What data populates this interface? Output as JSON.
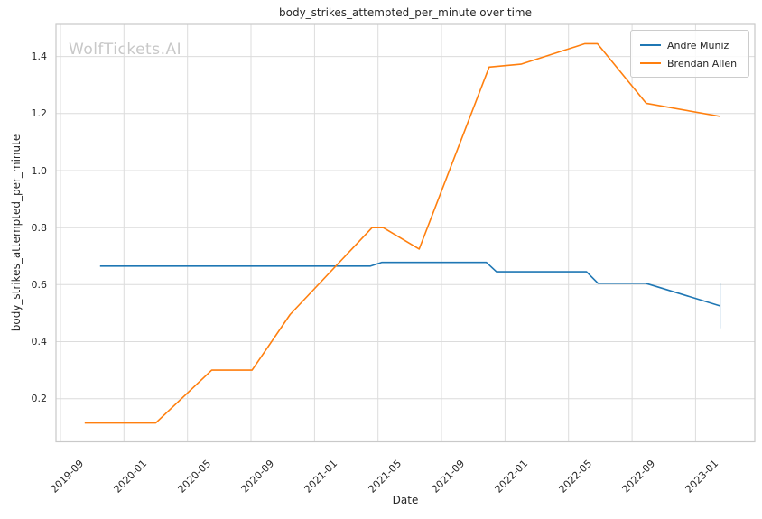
{
  "chart_data": {
    "type": "line",
    "title": "body_strikes_attempted_per_minute over time",
    "xlabel": "Date",
    "ylabel": "body_strikes_attempted_per_minute",
    "watermark": "WolfTickets.AI",
    "grid": true,
    "legend": {
      "position": "upper right",
      "entries": [
        "Andre Muniz",
        "Brendan Allen"
      ]
    },
    "x_tick_labels": [
      "2019-09",
      "2020-01",
      "2020-05",
      "2020-09",
      "2021-01",
      "2021-05",
      "2021-09",
      "2022-01",
      "2022-05",
      "2022-09",
      "2023-01"
    ],
    "y_ticks": [
      {
        "label": "0.2",
        "value": 0.2
      },
      {
        "label": "0.4",
        "value": 0.4
      },
      {
        "label": "0.6",
        "value": 0.6
      },
      {
        "label": "0.8",
        "value": 0.8
      },
      {
        "label": "1.0",
        "value": 1.0
      },
      {
        "label": "1.2",
        "value": 1.2
      },
      {
        "label": "1.4",
        "value": 1.4
      }
    ],
    "ylim": [
      0.05,
      1.51
    ],
    "xlim": [
      "2019-08-23",
      "2023-04-22"
    ],
    "series": [
      {
        "name": "Andre Muniz",
        "color": "#1f77b4",
        "points": [
          [
            "2019-11-16",
            0.665
          ],
          [
            "2021-04-17",
            0.665
          ],
          [
            "2021-05-08",
            0.678
          ],
          [
            "2021-11-26",
            0.678
          ],
          [
            "2021-12-15",
            0.645
          ],
          [
            "2022-06-05",
            0.645
          ],
          [
            "2022-06-27",
            0.605
          ],
          [
            "2022-09-27",
            0.605
          ],
          [
            "2023-02-18",
            0.525
          ]
        ],
        "end_error_bar": {
          "date": "2023-02-18",
          "low": 0.447,
          "high": 0.604
        }
      },
      {
        "name": "Brendan Allen",
        "color": "#ff7f0e",
        "points": [
          [
            "2019-10-17",
            0.115
          ],
          [
            "2020-03-01",
            0.115
          ],
          [
            "2020-06-17",
            0.3
          ],
          [
            "2020-09-03",
            0.3
          ],
          [
            "2020-11-15",
            0.495
          ],
          [
            "2021-04-20",
            0.8
          ],
          [
            "2021-05-11",
            0.8
          ],
          [
            "2021-07-19",
            0.725
          ],
          [
            "2021-12-01",
            1.363
          ],
          [
            "2022-02-01",
            1.373
          ],
          [
            "2022-06-02",
            1.445
          ],
          [
            "2022-06-26",
            1.445
          ],
          [
            "2022-09-28",
            1.236
          ],
          [
            "2023-02-18",
            1.19
          ]
        ]
      }
    ],
    "colors": {
      "background": "#ffffff",
      "grid": "#dcdcdc",
      "spine": "#c9c9c9",
      "text": "#262626",
      "watermark": "#c8c8c8",
      "series_blue": "#1f77b4",
      "series_orange": "#ff7f0e"
    }
  }
}
